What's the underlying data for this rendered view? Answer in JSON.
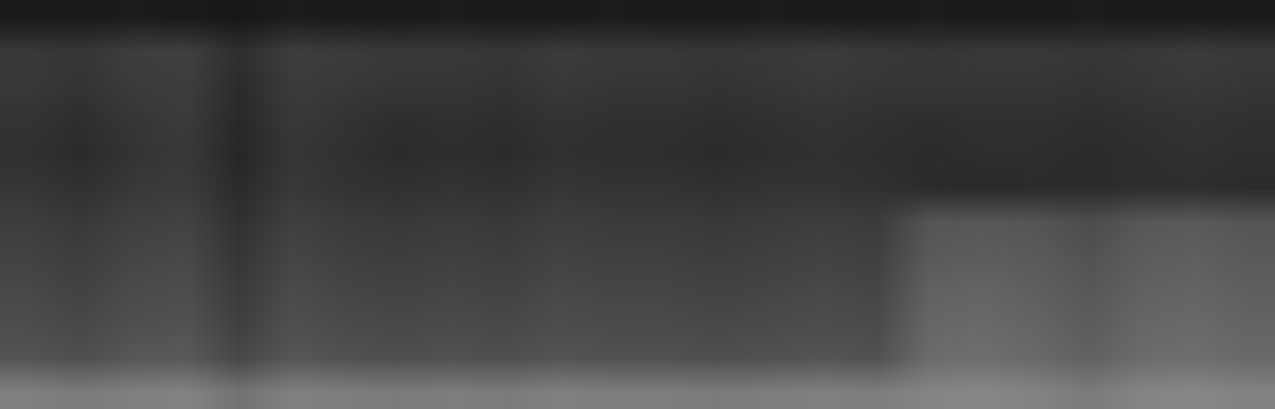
{
  "chart_data": {
    "type": "heatmap",
    "tick_labels": false,
    "grid": false,
    "zlim": [
      0,
      1
    ],
    "cells": [
      [
        0.1,
        0.1,
        0.11,
        0.1,
        0.09,
        0.11,
        0.1,
        0.1,
        0.11,
        0.1,
        0.1,
        0.11,
        0.1,
        0.1,
        0.11,
        0.1,
        0.1,
        0.11,
        0.1,
        0.1,
        0.11,
        0.1,
        0.1,
        0.1
      ],
      [
        0.22,
        0.21,
        0.24,
        0.25,
        0.18,
        0.24,
        0.23,
        0.22,
        0.22,
        0.21,
        0.23,
        0.22,
        0.22,
        0.21,
        0.22,
        0.23,
        0.22,
        0.21,
        0.22,
        0.22,
        0.21,
        0.22,
        0.23,
        0.22
      ],
      [
        0.22,
        0.2,
        0.23,
        0.24,
        0.17,
        0.23,
        0.22,
        0.21,
        0.21,
        0.2,
        0.22,
        0.21,
        0.21,
        0.2,
        0.21,
        0.22,
        0.21,
        0.21,
        0.21,
        0.21,
        0.2,
        0.21,
        0.22,
        0.21
      ],
      [
        0.2,
        0.18,
        0.21,
        0.23,
        0.16,
        0.22,
        0.2,
        0.18,
        0.19,
        0.18,
        0.2,
        0.19,
        0.19,
        0.18,
        0.19,
        0.2,
        0.19,
        0.18,
        0.19,
        0.19,
        0.18,
        0.19,
        0.2,
        0.19
      ],
      [
        0.19,
        0.17,
        0.2,
        0.22,
        0.15,
        0.21,
        0.19,
        0.17,
        0.18,
        0.17,
        0.19,
        0.18,
        0.18,
        0.17,
        0.18,
        0.19,
        0.18,
        0.17,
        0.18,
        0.18,
        0.17,
        0.18,
        0.19,
        0.18
      ],
      [
        0.21,
        0.19,
        0.22,
        0.23,
        0.17,
        0.22,
        0.2,
        0.19,
        0.2,
        0.19,
        0.21,
        0.2,
        0.2,
        0.19,
        0.2,
        0.2,
        0.19,
        0.17,
        0.16,
        0.17,
        0.17,
        0.18,
        0.18,
        0.17
      ],
      [
        0.24,
        0.22,
        0.25,
        0.26,
        0.19,
        0.25,
        0.23,
        0.22,
        0.23,
        0.22,
        0.24,
        0.23,
        0.23,
        0.22,
        0.23,
        0.24,
        0.23,
        0.33,
        0.34,
        0.33,
        0.3,
        0.34,
        0.35,
        0.33
      ],
      [
        0.26,
        0.24,
        0.27,
        0.28,
        0.21,
        0.27,
        0.25,
        0.24,
        0.25,
        0.24,
        0.26,
        0.25,
        0.25,
        0.24,
        0.25,
        0.26,
        0.25,
        0.35,
        0.36,
        0.35,
        0.32,
        0.36,
        0.37,
        0.35
      ],
      [
        0.28,
        0.26,
        0.29,
        0.3,
        0.23,
        0.29,
        0.27,
        0.26,
        0.27,
        0.26,
        0.28,
        0.27,
        0.27,
        0.26,
        0.27,
        0.28,
        0.27,
        0.38,
        0.39,
        0.37,
        0.34,
        0.38,
        0.39,
        0.37
      ],
      [
        0.3,
        0.28,
        0.31,
        0.32,
        0.25,
        0.31,
        0.29,
        0.28,
        0.29,
        0.28,
        0.3,
        0.29,
        0.29,
        0.28,
        0.29,
        0.3,
        0.29,
        0.4,
        0.41,
        0.39,
        0.36,
        0.4,
        0.41,
        0.39
      ],
      [
        0.33,
        0.31,
        0.34,
        0.35,
        0.28,
        0.34,
        0.32,
        0.31,
        0.32,
        0.31,
        0.33,
        0.32,
        0.32,
        0.31,
        0.32,
        0.33,
        0.32,
        0.42,
        0.43,
        0.41,
        0.38,
        0.42,
        0.43,
        0.41
      ],
      [
        0.5,
        0.48,
        0.5,
        0.51,
        0.45,
        0.5,
        0.49,
        0.48,
        0.49,
        0.48,
        0.5,
        0.49,
        0.49,
        0.48,
        0.49,
        0.5,
        0.49,
        0.52,
        0.53,
        0.51,
        0.48,
        0.52,
        0.53,
        0.51
      ]
    ]
  }
}
